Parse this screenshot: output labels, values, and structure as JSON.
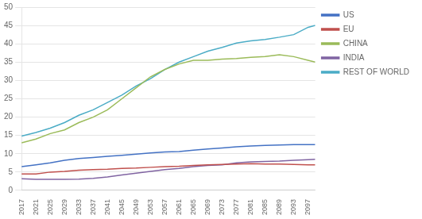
{
  "chart_data": {
    "type": "line",
    "x": [
      2017,
      2021,
      2025,
      2029,
      2033,
      2037,
      2041,
      2045,
      2049,
      2053,
      2057,
      2061,
      2065,
      2069,
      2073,
      2077,
      2081,
      2085,
      2089,
      2093,
      2097,
      2099
    ],
    "series": [
      {
        "name": "US",
        "color": "#4472C4",
        "values": [
          6.5,
          7.0,
          7.5,
          8.2,
          8.7,
          9.0,
          9.3,
          9.6,
          9.9,
          10.2,
          10.5,
          10.6,
          11.0,
          11.3,
          11.6,
          11.9,
          12.1,
          12.3,
          12.4,
          12.5,
          12.5,
          12.5
        ]
      },
      {
        "name": "EU",
        "color": "#C0504D",
        "values": [
          4.5,
          4.5,
          5.0,
          5.2,
          5.5,
          5.7,
          5.8,
          6.0,
          6.1,
          6.3,
          6.5,
          6.6,
          6.8,
          7.0,
          7.1,
          7.2,
          7.3,
          7.2,
          7.2,
          7.1,
          7.0,
          7.0
        ]
      },
      {
        "name": "CHINA",
        "color": "#9BBB59",
        "values": [
          13.0,
          14.0,
          15.5,
          16.5,
          18.5,
          20.0,
          22.0,
          25.0,
          28.0,
          31.0,
          33.0,
          34.5,
          35.5,
          35.5,
          35.8,
          36.0,
          36.3,
          36.5,
          37.0,
          36.5,
          35.5,
          35.0
        ]
      },
      {
        "name": "INDIA",
        "color": "#8064A2",
        "values": [
          3.2,
          3.0,
          3.0,
          3.0,
          3.1,
          3.3,
          3.7,
          4.2,
          4.7,
          5.2,
          5.7,
          6.0,
          6.5,
          6.8,
          7.0,
          7.5,
          7.8,
          7.9,
          8.0,
          8.2,
          8.4,
          8.5
        ]
      },
      {
        "name": "REST OF WORLD",
        "color": "#4BACC6",
        "values": [
          14.8,
          15.8,
          17.0,
          18.5,
          20.5,
          22.0,
          24.0,
          26.0,
          28.5,
          30.5,
          33.0,
          35.0,
          36.5,
          38.0,
          39.0,
          40.2,
          40.8,
          41.2,
          41.8,
          42.5,
          44.5,
          45.0
        ]
      }
    ],
    "xlim": [
      2017,
      2099
    ],
    "xticks": [
      2017,
      2021,
      2025,
      2029,
      2033,
      2037,
      2041,
      2045,
      2049,
      2053,
      2057,
      2061,
      2065,
      2069,
      2073,
      2077,
      2081,
      2085,
      2089,
      2093,
      2097
    ],
    "ylim": [
      0,
      50
    ],
    "yticks": [
      0,
      5,
      10,
      15,
      20,
      25,
      30,
      35,
      40,
      45,
      50
    ],
    "grid": "y",
    "legend": "right"
  }
}
